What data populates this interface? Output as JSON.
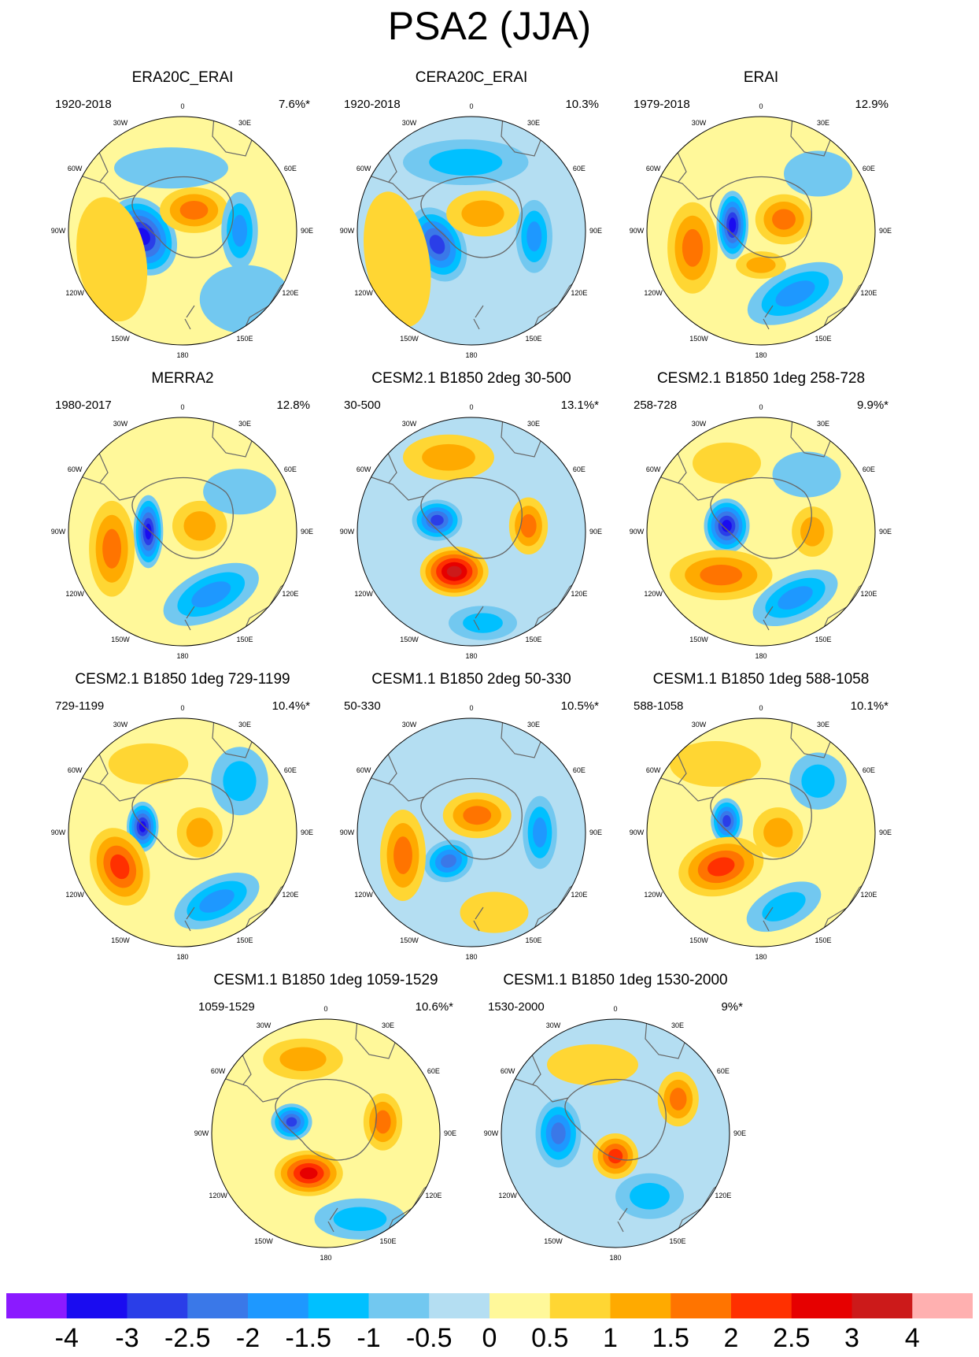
{
  "title": "PSA2 (JJA)",
  "lon_labels": [
    "0",
    "30E",
    "60E",
    "90E",
    "120E",
    "150E",
    "180",
    "150W",
    "120W",
    "90W",
    "60W",
    "30W"
  ],
  "colorbar": {
    "colors": [
      "#8b1aff",
      "#1a0cf0",
      "#2a3ee8",
      "#3a78e8",
      "#1e98ff",
      "#00c0ff",
      "#72c8f0",
      "#b4def2",
      "#fff89a",
      "#ffd633",
      "#ffaa00",
      "#ff7400",
      "#ff3000",
      "#e60000",
      "#cc1a1a",
      "#ffb0b0"
    ],
    "ticks": [
      "-4",
      "-3",
      "-2.5",
      "-2",
      "-1.5",
      "-1",
      "-0.5",
      "0",
      "0.5",
      "1",
      "1.5",
      "2",
      "2.5",
      "3",
      "4"
    ]
  },
  "panels": [
    {
      "title": "ERA20C_ERAI",
      "period": "1920-2018",
      "variance": "7.6%*",
      "bg": 0.3,
      "blobs": [
        {
          "xf": -0.35,
          "yf": 0.05,
          "rx": 0.28,
          "ry": 0.36,
          "v": -3.2,
          "r": -30
        },
        {
          "xf": 0.1,
          "yf": -0.18,
          "rx": 0.3,
          "ry": 0.2,
          "v": 1.5,
          "r": 0
        },
        {
          "xf": 0.5,
          "yf": 0.0,
          "rx": 0.16,
          "ry": 0.34,
          "v": -1.6,
          "r": 0
        },
        {
          "xf": -0.1,
          "yf": -0.55,
          "rx": 0.5,
          "ry": 0.18,
          "v": -0.8,
          "r": 0
        },
        {
          "xf": -0.62,
          "yf": 0.25,
          "rx": 0.3,
          "ry": 0.55,
          "v": 0.9,
          "r": -10
        },
        {
          "xf": 0.55,
          "yf": 0.6,
          "rx": 0.4,
          "ry": 0.3,
          "v": -0.4,
          "r": 0
        }
      ]
    },
    {
      "title": "CERA20C_ERAI",
      "period": "1920-2018",
      "variance": "10.3%",
      "bg": -0.3,
      "blobs": [
        {
          "xf": -0.3,
          "yf": 0.12,
          "rx": 0.24,
          "ry": 0.34,
          "v": -2.9,
          "r": -25
        },
        {
          "xf": 0.1,
          "yf": -0.15,
          "rx": 0.32,
          "ry": 0.2,
          "v": 1.3,
          "r": 0
        },
        {
          "xf": 0.55,
          "yf": 0.05,
          "rx": 0.16,
          "ry": 0.32,
          "v": -1.7,
          "r": 0
        },
        {
          "xf": -0.05,
          "yf": -0.6,
          "rx": 0.55,
          "ry": 0.2,
          "v": -1.1,
          "r": 0
        },
        {
          "xf": -0.65,
          "yf": 0.25,
          "rx": 0.28,
          "ry": 0.6,
          "v": 0.9,
          "r": -10
        }
      ]
    },
    {
      "title": "ERAI",
      "period": "1979-2018",
      "variance": "12.9%",
      "bg": 0.3,
      "blobs": [
        {
          "xf": -0.25,
          "yf": -0.05,
          "rx": 0.14,
          "ry": 0.3,
          "v": -3.6,
          "r": 0
        },
        {
          "xf": 0.2,
          "yf": -0.1,
          "rx": 0.25,
          "ry": 0.22,
          "v": 1.5,
          "r": 0
        },
        {
          "xf": -0.6,
          "yf": 0.15,
          "rx": 0.22,
          "ry": 0.4,
          "v": 1.7,
          "r": 0
        },
        {
          "xf": 0.3,
          "yf": 0.55,
          "rx": 0.45,
          "ry": 0.22,
          "v": -1.8,
          "r": -25
        },
        {
          "xf": 0.5,
          "yf": -0.5,
          "rx": 0.3,
          "ry": 0.2,
          "v": -0.9,
          "r": 0
        },
        {
          "xf": 0.0,
          "yf": 0.3,
          "rx": 0.22,
          "ry": 0.12,
          "v": 1.2,
          "r": 0
        }
      ]
    },
    {
      "title": "MERRA2",
      "period": "1980-2017",
      "variance": "12.8%",
      "bg": 0.3,
      "blobs": [
        {
          "xf": -0.3,
          "yf": 0.0,
          "rx": 0.13,
          "ry": 0.32,
          "v": -3.4,
          "r": 0
        },
        {
          "xf": 0.15,
          "yf": -0.05,
          "rx": 0.24,
          "ry": 0.22,
          "v": 1.4,
          "r": 0
        },
        {
          "xf": -0.62,
          "yf": 0.15,
          "rx": 0.2,
          "ry": 0.42,
          "v": 1.8,
          "r": 0
        },
        {
          "xf": 0.25,
          "yf": 0.55,
          "rx": 0.45,
          "ry": 0.22,
          "v": -1.6,
          "r": -25
        },
        {
          "xf": 0.5,
          "yf": -0.35,
          "rx": 0.32,
          "ry": 0.2,
          "v": -0.9,
          "r": 0
        }
      ]
    },
    {
      "title": "CESM2.1 B1850 2deg 30-500",
      "period": "30-500",
      "variance": "13.1%*",
      "bg": -0.3,
      "blobs": [
        {
          "xf": -0.3,
          "yf": -0.1,
          "rx": 0.22,
          "ry": 0.18,
          "v": -2.6,
          "r": 0
        },
        {
          "xf": -0.15,
          "yf": 0.35,
          "rx": 0.3,
          "ry": 0.22,
          "v": 3.2,
          "r": 0
        },
        {
          "xf": 0.5,
          "yf": -0.05,
          "rx": 0.17,
          "ry": 0.25,
          "v": 1.9,
          "r": 0
        },
        {
          "xf": -0.2,
          "yf": -0.65,
          "rx": 0.4,
          "ry": 0.2,
          "v": 1.3,
          "r": 0
        },
        {
          "xf": 0.1,
          "yf": 0.8,
          "rx": 0.3,
          "ry": 0.15,
          "v": -1.0,
          "r": 0
        }
      ]
    },
    {
      "title": "CESM2.1 B1850 1deg 258-728",
      "period": "258-728",
      "variance": "9.9%*",
      "bg": 0.3,
      "blobs": [
        {
          "xf": -0.3,
          "yf": -0.05,
          "rx": 0.2,
          "ry": 0.24,
          "v": -3.4,
          "r": 0
        },
        {
          "xf": -0.35,
          "yf": 0.38,
          "rx": 0.45,
          "ry": 0.22,
          "v": 1.6,
          "r": 0
        },
        {
          "xf": 0.45,
          "yf": 0.0,
          "rx": 0.18,
          "ry": 0.22,
          "v": 1.3,
          "r": 0
        },
        {
          "xf": 0.3,
          "yf": 0.58,
          "rx": 0.4,
          "ry": 0.2,
          "v": -1.5,
          "r": -25
        },
        {
          "xf": 0.4,
          "yf": -0.5,
          "rx": 0.3,
          "ry": 0.2,
          "v": -0.8,
          "r": 0
        },
        {
          "xf": -0.3,
          "yf": -0.6,
          "rx": 0.3,
          "ry": 0.18,
          "v": 0.9,
          "r": 0
        }
      ]
    },
    {
      "title": "CESM2.1 B1850 1deg 729-1199",
      "period": "729-1199",
      "variance": "10.4%*",
      "bg": 0.3,
      "blobs": [
        {
          "xf": -0.35,
          "yf": -0.05,
          "rx": 0.14,
          "ry": 0.22,
          "v": -3.2,
          "r": 0
        },
        {
          "xf": -0.55,
          "yf": 0.3,
          "rx": 0.25,
          "ry": 0.35,
          "v": 2.2,
          "r": -20
        },
        {
          "xf": 0.15,
          "yf": 0.0,
          "rx": 0.2,
          "ry": 0.22,
          "v": 1.3,
          "r": 0
        },
        {
          "xf": 0.3,
          "yf": 0.6,
          "rx": 0.4,
          "ry": 0.2,
          "v": -1.6,
          "r": -25
        },
        {
          "xf": 0.5,
          "yf": -0.45,
          "rx": 0.25,
          "ry": 0.3,
          "v": -1.4,
          "r": 0
        },
        {
          "xf": -0.3,
          "yf": -0.6,
          "rx": 0.35,
          "ry": 0.18,
          "v": 0.9,
          "r": 0
        }
      ]
    },
    {
      "title": "CESM1.1 B1850 2deg 50-330",
      "period": "50-330",
      "variance": "10.5%*",
      "bg": -0.3,
      "blobs": [
        {
          "xf": -0.2,
          "yf": 0.25,
          "rx": 0.22,
          "ry": 0.18,
          "v": -2.3,
          "r": -20
        },
        {
          "xf": 0.05,
          "yf": -0.15,
          "rx": 0.3,
          "ry": 0.2,
          "v": 1.7,
          "r": 0
        },
        {
          "xf": -0.6,
          "yf": 0.2,
          "rx": 0.2,
          "ry": 0.4,
          "v": 1.7,
          "r": 0
        },
        {
          "xf": 0.6,
          "yf": 0.0,
          "rx": 0.15,
          "ry": 0.32,
          "v": -1.6,
          "r": 0
        },
        {
          "xf": 0.2,
          "yf": 0.7,
          "rx": 0.3,
          "ry": 0.18,
          "v": 0.8,
          "r": 0
        }
      ]
    },
    {
      "title": "CESM1.1 B1850 1deg 588-1058",
      "period": "588-1058",
      "variance": "10.1%*",
      "bg": 0.3,
      "blobs": [
        {
          "xf": -0.3,
          "yf": -0.1,
          "rx": 0.14,
          "ry": 0.2,
          "v": -2.7,
          "r": 0
        },
        {
          "xf": -0.35,
          "yf": 0.3,
          "rx": 0.38,
          "ry": 0.25,
          "v": 2.4,
          "r": -15
        },
        {
          "xf": 0.15,
          "yf": 0.0,
          "rx": 0.22,
          "ry": 0.22,
          "v": 1.2,
          "r": 0
        },
        {
          "xf": 0.2,
          "yf": 0.65,
          "rx": 0.35,
          "ry": 0.18,
          "v": -1.3,
          "r": -25
        },
        {
          "xf": 0.5,
          "yf": -0.45,
          "rx": 0.25,
          "ry": 0.25,
          "v": -1.4,
          "r": 0
        },
        {
          "xf": -0.4,
          "yf": -0.6,
          "rx": 0.4,
          "ry": 0.2,
          "v": 0.9,
          "r": 0
        }
      ]
    },
    {
      "title": "CESM1.1 B1850 1deg 1059-1529",
      "period": "1059-1529",
      "variance": "10.6%*",
      "bg": 0.3,
      "blobs": [
        {
          "xf": -0.3,
          "yf": -0.1,
          "rx": 0.18,
          "ry": 0.16,
          "v": -2.6,
          "r": 0
        },
        {
          "xf": -0.15,
          "yf": 0.35,
          "rx": 0.3,
          "ry": 0.2,
          "v": 2.5,
          "r": 0
        },
        {
          "xf": 0.5,
          "yf": -0.1,
          "rx": 0.17,
          "ry": 0.25,
          "v": 1.6,
          "r": 0
        },
        {
          "xf": -0.2,
          "yf": -0.65,
          "rx": 0.35,
          "ry": 0.18,
          "v": 1.3,
          "r": 0
        },
        {
          "xf": 0.3,
          "yf": 0.75,
          "rx": 0.4,
          "ry": 0.18,
          "v": -1.4,
          "r": 0
        }
      ]
    },
    {
      "title": "CESM1.1 B1850 1deg 1530-2000",
      "period": "1530-2000",
      "variance": "9%*",
      "bg": -0.3,
      "blobs": [
        {
          "xf": -0.5,
          "yf": 0.0,
          "rx": 0.2,
          "ry": 0.3,
          "v": -2.3,
          "r": 0
        },
        {
          "xf": 0.0,
          "yf": 0.2,
          "rx": 0.2,
          "ry": 0.2,
          "v": 2.4,
          "r": 0
        },
        {
          "xf": 0.55,
          "yf": -0.3,
          "rx": 0.18,
          "ry": 0.24,
          "v": 1.8,
          "r": 0
        },
        {
          "xf": -0.2,
          "yf": -0.6,
          "rx": 0.4,
          "ry": 0.18,
          "v": 0.9,
          "r": 0
        },
        {
          "xf": 0.3,
          "yf": 0.55,
          "rx": 0.3,
          "ry": 0.2,
          "v": -1.0,
          "r": 0
        }
      ]
    }
  ]
}
